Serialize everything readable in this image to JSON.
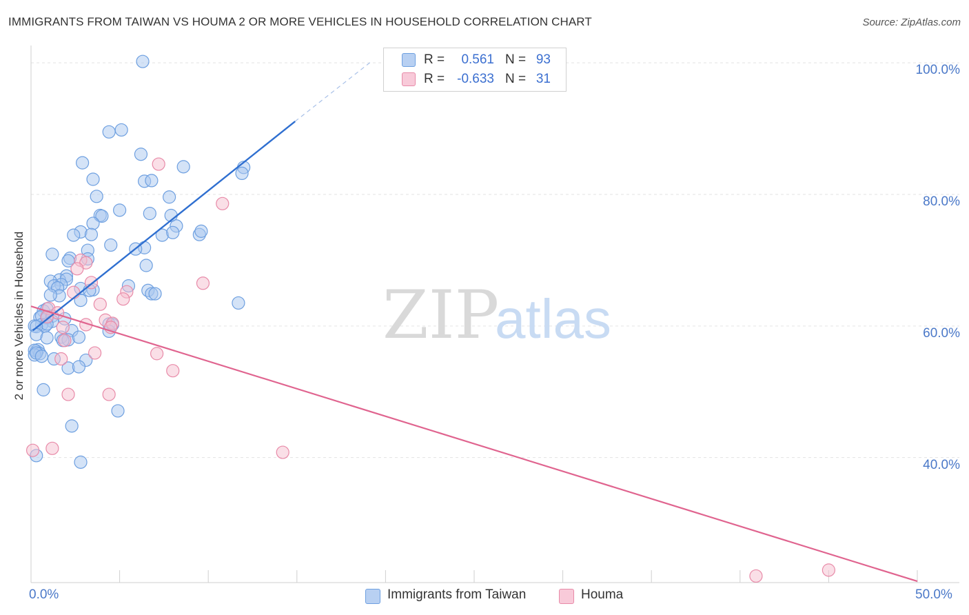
{
  "title": "IMMIGRANTS FROM TAIWAN VS HOUMA 2 OR MORE VEHICLES IN HOUSEHOLD CORRELATION CHART",
  "source": "Source: ZipAtlas.com",
  "watermark": {
    "zip": "ZIP",
    "atlas": "atlas"
  },
  "colors": {
    "blue_fill": "#a9c7ef",
    "blue_stroke": "#6d9fe0",
    "blue_line": "#2f6fd0",
    "pink_fill": "#f5c0d0",
    "pink_stroke": "#e88aa8",
    "pink_line": "#e0648f",
    "tick_text": "#4a78c8",
    "grid": "#e3e3e3"
  },
  "legend": {
    "r_label": "R =",
    "n_label": "N =",
    "series": [
      {
        "r": "0.561",
        "n": "93"
      },
      {
        "r": "-0.633",
        "n": "31"
      }
    ]
  },
  "chart_data": {
    "type": "scatter",
    "title": "IMMIGRANTS FROM TAIWAN VS HOUMA 2 OR MORE VEHICLES IN HOUSEHOLD CORRELATION CHART",
    "xlabel": "",
    "ylabel": "2 or more Vehicles in Household",
    "xlim": [
      0,
      50
    ],
    "ylim": [
      21,
      102
    ],
    "x_tick_labels": [
      "0.0%",
      "50.0%"
    ],
    "y_ticks": [
      40,
      60,
      80,
      100
    ],
    "y_tick_labels": [
      "40.0%",
      "60.0%",
      "80.0%",
      "100.0%"
    ],
    "grid": true,
    "legend_position": "bottom",
    "series": [
      {
        "name": "Immigrants from Taiwan",
        "r": 0.561,
        "n": 93,
        "trend": {
          "x0": 0.1,
          "y0": 59.3,
          "x1": 14.9,
          "y1": 91.1,
          "dash_to_x": 19.2,
          "dash_to_y": 100.2
        },
        "points": [
          [
            6.3,
            100.2
          ],
          [
            5.1,
            89.8
          ],
          [
            4.4,
            89.5
          ],
          [
            6.2,
            86.1
          ],
          [
            2.9,
            84.8
          ],
          [
            8.6,
            84.2
          ],
          [
            12.0,
            84.1
          ],
          [
            11.9,
            83.2
          ],
          [
            3.5,
            82.3
          ],
          [
            6.4,
            82.0
          ],
          [
            6.8,
            82.1
          ],
          [
            3.7,
            79.7
          ],
          [
            7.8,
            79.6
          ],
          [
            5.0,
            77.6
          ],
          [
            3.9,
            76.8
          ],
          [
            4.0,
            76.7
          ],
          [
            6.7,
            77.1
          ],
          [
            7.9,
            76.8
          ],
          [
            3.5,
            75.6
          ],
          [
            8.2,
            75.2
          ],
          [
            2.8,
            74.3
          ],
          [
            3.4,
            73.9
          ],
          [
            2.4,
            73.8
          ],
          [
            7.4,
            73.8
          ],
          [
            9.5,
            73.9
          ],
          [
            9.6,
            74.4
          ],
          [
            8.0,
            74.2
          ],
          [
            4.5,
            72.3
          ],
          [
            6.4,
            71.9
          ],
          [
            5.9,
            71.7
          ],
          [
            3.2,
            71.5
          ],
          [
            1.2,
            70.9
          ],
          [
            2.2,
            70.3
          ],
          [
            3.2,
            70.2
          ],
          [
            6.5,
            69.2
          ],
          [
            2.1,
            69.9
          ],
          [
            2.0,
            67.6
          ],
          [
            1.6,
            67.0
          ],
          [
            1.1,
            66.8
          ],
          [
            2.0,
            67.1
          ],
          [
            1.7,
            66.3
          ],
          [
            1.3,
            66.1
          ],
          [
            1.5,
            65.8
          ],
          [
            2.8,
            65.7
          ],
          [
            3.5,
            65.5
          ],
          [
            3.3,
            65.4
          ],
          [
            6.6,
            65.4
          ],
          [
            5.5,
            66.1
          ],
          [
            6.8,
            64.9
          ],
          [
            7.0,
            64.9
          ],
          [
            1.6,
            64.6
          ],
          [
            1.1,
            64.7
          ],
          [
            2.8,
            63.9
          ],
          [
            11.7,
            63.5
          ],
          [
            0.7,
            62.3
          ],
          [
            0.9,
            62.6
          ],
          [
            0.5,
            61.3
          ],
          [
            0.6,
            61.5
          ],
          [
            0.9,
            61.2
          ],
          [
            1.2,
            61.5
          ],
          [
            1.2,
            60.7
          ],
          [
            1.9,
            61.1
          ],
          [
            0.6,
            60.2
          ],
          [
            0.8,
            60.0
          ],
          [
            0.9,
            60.3
          ],
          [
            4.4,
            60.3
          ],
          [
            4.6,
            60.2
          ],
          [
            0.2,
            60.0
          ],
          [
            0.3,
            59.9
          ],
          [
            2.3,
            59.3
          ],
          [
            4.4,
            59.2
          ],
          [
            0.3,
            58.7
          ],
          [
            1.7,
            58.3
          ],
          [
            0.9,
            58.2
          ],
          [
            2.1,
            57.9
          ],
          [
            1.8,
            57.8
          ],
          [
            2.7,
            58.3
          ],
          [
            0.3,
            56.2
          ],
          [
            0.4,
            56.4
          ],
          [
            0.2,
            56.3
          ],
          [
            0.5,
            55.8
          ],
          [
            0.2,
            55.6
          ],
          [
            0.3,
            55.9
          ],
          [
            0.6,
            55.4
          ],
          [
            1.3,
            55.0
          ],
          [
            3.1,
            54.8
          ],
          [
            2.1,
            53.6
          ],
          [
            2.7,
            53.8
          ],
          [
            0.7,
            50.3
          ],
          [
            4.9,
            47.1
          ],
          [
            2.3,
            44.8
          ],
          [
            0.3,
            40.3
          ],
          [
            2.8,
            39.3
          ]
        ]
      },
      {
        "name": "Houma",
        "r": -0.633,
        "n": 31,
        "trend": {
          "x0": 0.0,
          "y0": 63.0,
          "x1": 50.0,
          "y1": 21.2
        },
        "points": [
          [
            7.2,
            84.6
          ],
          [
            10.8,
            78.6
          ],
          [
            2.8,
            70.0
          ],
          [
            3.1,
            69.6
          ],
          [
            2.6,
            68.7
          ],
          [
            9.7,
            66.5
          ],
          [
            3.4,
            66.6
          ],
          [
            5.4,
            65.2
          ],
          [
            2.4,
            65.1
          ],
          [
            5.2,
            64.1
          ],
          [
            3.9,
            63.3
          ],
          [
            1.0,
            62.7
          ],
          [
            1.5,
            62.0
          ],
          [
            0.9,
            61.4
          ],
          [
            4.2,
            60.9
          ],
          [
            3.1,
            60.2
          ],
          [
            4.6,
            60.4
          ],
          [
            4.5,
            59.8
          ],
          [
            1.8,
            59.8
          ],
          [
            1.9,
            57.8
          ],
          [
            3.6,
            55.9
          ],
          [
            7.1,
            55.8
          ],
          [
            1.7,
            55.0
          ],
          [
            8.0,
            53.2
          ],
          [
            2.1,
            49.6
          ],
          [
            4.4,
            49.6
          ],
          [
            1.2,
            41.4
          ],
          [
            0.1,
            41.1
          ],
          [
            14.2,
            40.8
          ],
          [
            40.9,
            22.0
          ],
          [
            45.0,
            22.9
          ]
        ]
      }
    ]
  }
}
